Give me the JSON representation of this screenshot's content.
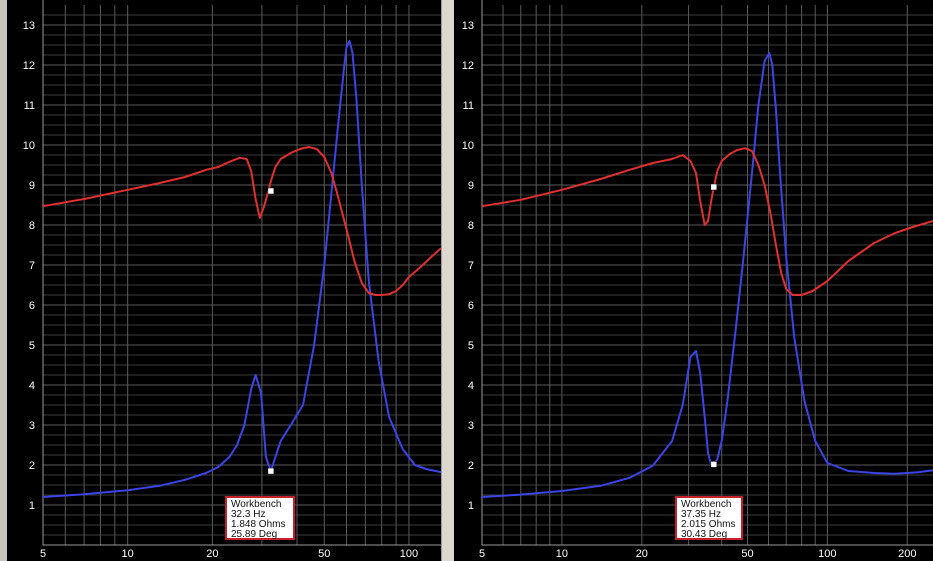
{
  "colors": {
    "background": "#000000",
    "grid": "#5a5a5a",
    "axis_text": "#ffffff",
    "impedance": "#3b44e6",
    "phase": "#e03030",
    "readout_border": "#c8202a"
  },
  "chart_data": [
    {
      "type": "line",
      "title": "",
      "xlabel": "",
      "ylabel": "",
      "xscale": "log",
      "xlim": [
        5,
        130
      ],
      "ylim": [
        0,
        13.5
      ],
      "grid": true,
      "x_ticks": [
        5,
        10,
        20,
        50,
        100
      ],
      "y_ticks": [
        1,
        2,
        3,
        4,
        5,
        6,
        7,
        8,
        9,
        10,
        11,
        12,
        13
      ],
      "series": [
        {
          "color": "#3b44e6",
          "x": [
            5,
            7,
            10,
            13,
            16,
            19,
            21,
            23,
            24.5,
            26,
            27.5,
            28.5,
            29.8,
            31,
            32.3,
            33.5,
            35,
            38,
            42,
            46,
            50,
            53,
            56,
            58.5,
            60,
            61.5,
            63,
            65,
            68,
            72,
            78,
            85,
            95,
            105,
            115,
            130
          ],
          "y": [
            1.2,
            1.27,
            1.37,
            1.48,
            1.63,
            1.8,
            1.95,
            2.2,
            2.5,
            3.0,
            3.9,
            4.25,
            3.8,
            2.2,
            1.85,
            2.2,
            2.6,
            3.0,
            3.5,
            5.0,
            7.0,
            8.8,
            10.5,
            11.8,
            12.45,
            12.6,
            12.3,
            11.2,
            9.0,
            6.6,
            4.6,
            3.2,
            2.4,
            2.0,
            1.9,
            1.82
          ]
        },
        {
          "color": "#e03030",
          "x": [
            5,
            7,
            10,
            13,
            16,
            19,
            21,
            23,
            25,
            26.5,
            27.5,
            28.5,
            29.5,
            30.5,
            31.5,
            32.3,
            33.5,
            35,
            38,
            41,
            44,
            47,
            50,
            53,
            56,
            60,
            64,
            68,
            72,
            76,
            80,
            85,
            90,
            95,
            100,
            110,
            120,
            130
          ],
          "y": [
            8.47,
            8.65,
            8.88,
            9.05,
            9.2,
            9.38,
            9.45,
            9.58,
            9.68,
            9.65,
            9.35,
            8.65,
            8.18,
            8.45,
            8.8,
            9.1,
            9.45,
            9.65,
            9.8,
            9.9,
            9.95,
            9.9,
            9.7,
            9.3,
            8.7,
            7.9,
            7.1,
            6.55,
            6.3,
            6.25,
            6.25,
            6.27,
            6.35,
            6.5,
            6.7,
            6.95,
            7.2,
            7.42
          ]
        }
      ],
      "cursor": {
        "x": 32.3,
        "impedance": 1.848,
        "phase": 8.85
      },
      "readout": [
        "Workbench",
        "32.3 Hz",
        "1.848 Ohms",
        "25.89 Deg"
      ]
    },
    {
      "type": "line",
      "title": "",
      "xlabel": "",
      "ylabel": "",
      "xscale": "log",
      "xlim": [
        5,
        250
      ],
      "ylim": [
        0,
        13.5
      ],
      "grid": true,
      "x_ticks": [
        5,
        10,
        20,
        50,
        100,
        200
      ],
      "y_ticks": [
        1,
        2,
        3,
        4,
        5,
        6,
        7,
        8,
        9,
        10,
        11,
        12,
        13
      ],
      "series": [
        {
          "color": "#3b44e6",
          "x": [
            5,
            7,
            10,
            14,
            18,
            22,
            26,
            28.5,
            30.5,
            32,
            33.2,
            34.5,
            35.5,
            36.5,
            37.35,
            38.5,
            40,
            42,
            45,
            48,
            52,
            55,
            58,
            60.5,
            62,
            64,
            66.5,
            70,
            75,
            82,
            90,
            100,
            120,
            150,
            180,
            220,
            250
          ],
          "y": [
            1.2,
            1.26,
            1.35,
            1.48,
            1.68,
            1.98,
            2.6,
            3.5,
            4.7,
            4.85,
            4.3,
            3.2,
            2.3,
            2.0,
            2.015,
            2.15,
            2.6,
            3.6,
            5.3,
            7.0,
            9.3,
            11.0,
            12.1,
            12.3,
            12.0,
            10.9,
            9.2,
            7.2,
            5.2,
            3.6,
            2.6,
            2.05,
            1.85,
            1.8,
            1.78,
            1.82,
            1.87
          ]
        },
        {
          "color": "#e03030",
          "x": [
            5,
            7,
            10,
            14,
            18,
            22,
            26,
            28.5,
            30.5,
            32,
            33.2,
            34.5,
            35.5,
            36.5,
            37.35,
            38.5,
            40,
            43,
            46,
            49,
            52,
            55,
            58,
            61,
            64,
            67,
            70,
            74,
            80,
            88,
            100,
            120,
            150,
            180,
            210,
            250
          ],
          "y": [
            8.47,
            8.63,
            8.88,
            9.15,
            9.38,
            9.55,
            9.65,
            9.75,
            9.6,
            9.3,
            8.6,
            8.0,
            8.1,
            8.6,
            8.95,
            9.35,
            9.6,
            9.78,
            9.88,
            9.92,
            9.85,
            9.5,
            9.0,
            8.3,
            7.5,
            6.8,
            6.4,
            6.25,
            6.25,
            6.35,
            6.6,
            7.1,
            7.55,
            7.8,
            7.95,
            8.1
          ]
        }
      ],
      "cursor": {
        "x": 37.35,
        "impedance": 2.015,
        "phase": 8.95
      },
      "readout": [
        "Workbench",
        "37.35 Hz",
        "2.015 Ohms",
        "30.43 Deg"
      ]
    }
  ]
}
